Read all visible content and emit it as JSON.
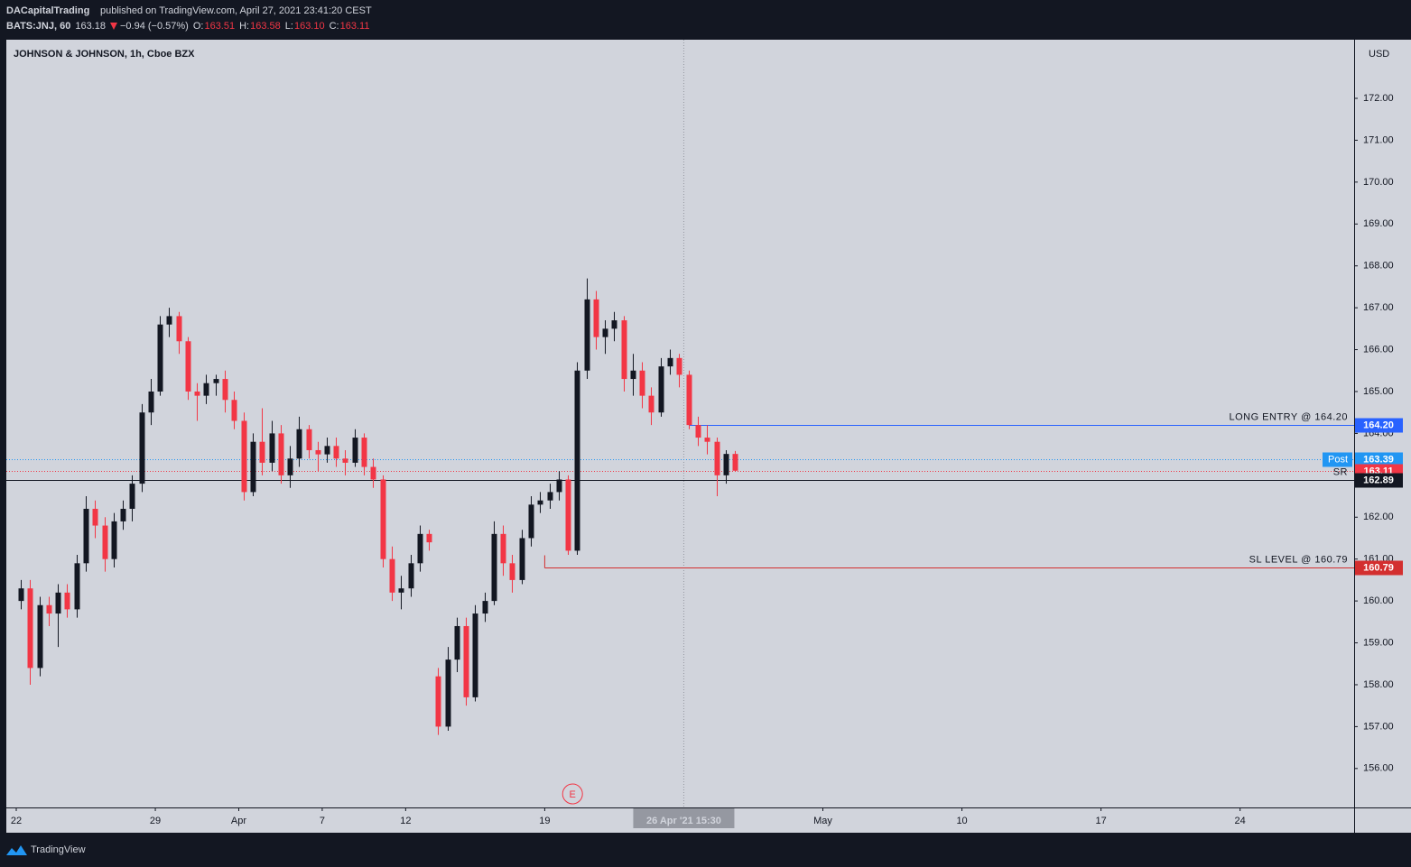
{
  "header": {
    "author": "DACapitalTrading",
    "published": "published on TradingView.com, April 27, 2021 23:41:20 CEST",
    "symbol": "BATS:JNJ, 60",
    "last": "163.18",
    "change": "−0.94 (−0.57%)",
    "o_label": "O:",
    "open": "163.51",
    "h_label": "H:",
    "high": "163.58",
    "l_label": "L:",
    "low": "163.10",
    "c_label": "C:",
    "close": "163.11"
  },
  "footer": {
    "brand": "TradingView"
  },
  "chart_data": {
    "type": "candlestick",
    "title": "JOHNSON & JOHNSON, 1h, Cboe BZX",
    "y_unit": "USD",
    "up_color": "#131722",
    "down_color": "#f23645",
    "grid": false,
    "x": [
      0.17,
      0.5,
      0.83,
      1.17,
      1.5,
      1.83,
      2.17,
      2.5,
      2.83,
      3.17,
      3.5,
      3.83,
      4.17,
      4.5,
      4.83,
      5.17,
      5.5,
      5.83,
      6.17,
      6.5,
      6.83,
      7.17,
      7.5,
      7.83,
      8.17,
      8.5,
      8.83,
      9.17,
      9.5,
      9.83,
      10.17,
      10.5,
      10.83,
      11.17,
      11.5,
      11.83,
      12.17,
      12.5,
      12.83,
      13.17,
      13.5,
      13.83,
      14.17,
      14.5,
      14.83,
      15.17,
      15.5,
      15.83,
      16.17,
      16.5,
      16.83,
      17.17,
      17.5,
      17.83,
      18.17,
      18.5,
      18.83,
      19.17,
      19.5,
      19.83,
      20.17,
      20.5,
      20.83,
      21.17,
      21.5,
      21.83,
      22.17,
      22.5,
      22.83,
      23.17,
      23.5,
      23.83,
      24.17,
      24.5,
      24.83,
      25.17,
      25.5,
      25.83
    ],
    "open": [
      160.0,
      160.3,
      158.4,
      159.9,
      159.7,
      160.2,
      159.8,
      160.9,
      162.2,
      161.8,
      161.0,
      161.9,
      162.2,
      162.8,
      164.5,
      165.0,
      166.6,
      166.8,
      166.2,
      165.0,
      164.9,
      165.2,
      165.3,
      164.8,
      164.3,
      162.6,
      163.8,
      163.3,
      164.0,
      163.0,
      163.4,
      164.1,
      163.6,
      163.5,
      163.7,
      163.4,
      163.3,
      163.9,
      163.2,
      162.9,
      161.0,
      160.2,
      160.3,
      160.9,
      161.6,
      158.2,
      157.0,
      158.6,
      159.4,
      157.7,
      159.7,
      160.0,
      161.6,
      160.9,
      160.5,
      161.5,
      162.3,
      162.4,
      162.6,
      162.9,
      161.2,
      165.5,
      167.2,
      166.3,
      166.5,
      166.7,
      165.3,
      165.5,
      164.9,
      164.5,
      165.6,
      165.8,
      165.4,
      164.2,
      163.9,
      163.8,
      163.0,
      163.51
    ],
    "high": [
      160.5,
      160.5,
      160.1,
      160.1,
      160.4,
      160.4,
      161.1,
      162.5,
      162.4,
      162.0,
      162.1,
      162.4,
      163.0,
      164.7,
      165.3,
      166.8,
      167.0,
      166.9,
      166.3,
      165.2,
      165.4,
      165.4,
      165.5,
      165.0,
      164.5,
      164.0,
      164.6,
      164.3,
      164.2,
      163.7,
      164.4,
      164.2,
      163.8,
      163.9,
      163.9,
      163.6,
      164.1,
      164.0,
      163.4,
      163.0,
      161.3,
      160.6,
      161.1,
      161.8,
      161.7,
      158.4,
      158.9,
      159.6,
      159.6,
      159.9,
      160.2,
      161.9,
      161.8,
      161.1,
      161.7,
      162.5,
      162.6,
      162.8,
      163.1,
      163.0,
      165.7,
      167.7,
      167.4,
      166.7,
      166.9,
      166.8,
      165.9,
      165.7,
      165.1,
      165.8,
      166.0,
      165.9,
      165.5,
      164.4,
      164.2,
      163.9,
      163.6,
      163.58
    ],
    "low": [
      159.8,
      158.0,
      158.2,
      159.4,
      158.9,
      159.6,
      159.6,
      160.7,
      161.5,
      160.7,
      160.8,
      161.7,
      161.9,
      162.6,
      164.2,
      164.9,
      166.3,
      165.9,
      164.8,
      164.3,
      164.7,
      164.9,
      164.5,
      164.1,
      162.4,
      162.5,
      163.0,
      163.1,
      162.8,
      162.7,
      163.2,
      163.4,
      163.1,
      163.3,
      163.2,
      163.0,
      163.2,
      163.0,
      162.7,
      160.8,
      160.0,
      159.8,
      160.1,
      160.7,
      161.2,
      156.8,
      156.9,
      158.3,
      157.5,
      157.6,
      159.5,
      159.9,
      160.6,
      160.2,
      160.4,
      161.3,
      162.1,
      162.2,
      162.4,
      161.1,
      161.1,
      165.3,
      166.0,
      165.9,
      166.2,
      165.0,
      164.9,
      164.6,
      164.2,
      164.4,
      165.4,
      165.1,
      164.1,
      163.7,
      163.5,
      162.5,
      162.8,
      163.1
    ],
    "close": [
      160.3,
      158.4,
      159.9,
      159.7,
      160.2,
      159.8,
      160.9,
      162.2,
      161.8,
      161.0,
      161.9,
      162.2,
      162.8,
      164.5,
      165.0,
      166.6,
      166.8,
      166.2,
      165.0,
      164.9,
      165.2,
      165.3,
      164.8,
      164.3,
      162.6,
      163.8,
      163.3,
      164.0,
      163.0,
      163.4,
      164.1,
      163.6,
      163.5,
      163.7,
      163.4,
      163.3,
      163.9,
      163.2,
      162.9,
      161.0,
      160.2,
      160.3,
      160.9,
      161.6,
      161.4,
      157.0,
      158.6,
      159.4,
      157.7,
      159.7,
      160.0,
      161.6,
      160.9,
      160.5,
      161.5,
      162.3,
      162.4,
      162.6,
      162.9,
      161.2,
      165.5,
      167.2,
      166.3,
      166.5,
      166.7,
      165.3,
      165.5,
      164.9,
      164.5,
      165.6,
      165.8,
      165.4,
      164.2,
      163.9,
      163.8,
      163.0,
      163.51,
      163.11
    ],
    "xlim": [
      -0.357,
      48.1
    ],
    "ylim": [
      155.07,
      173.4
    ],
    "xticks": [
      {
        "value": 0,
        "label": "22"
      },
      {
        "value": 5,
        "label": "29"
      },
      {
        "value": 8,
        "label": "Apr"
      },
      {
        "value": 11,
        "label": "7"
      },
      {
        "value": 14,
        "label": "12"
      },
      {
        "value": 19,
        "label": "19"
      },
      {
        "value": 29,
        "label": "May"
      },
      {
        "value": 34,
        "label": "10"
      },
      {
        "value": 39,
        "label": "17"
      },
      {
        "value": 44,
        "label": "24"
      }
    ],
    "yticks": [
      {
        "value": 156,
        "label": "156.00"
      },
      {
        "value": 157,
        "label": "157.00"
      },
      {
        "value": 158,
        "label": "158.00"
      },
      {
        "value": 159,
        "label": "159.00"
      },
      {
        "value": 160,
        "label": "160.00"
      },
      {
        "value": 161,
        "label": "161.00"
      },
      {
        "value": 162,
        "label": "162.00"
      },
      {
        "value": 163,
        "label": "163.00"
      },
      {
        "value": 164,
        "label": "164.00"
      },
      {
        "value": 165,
        "label": "165.00"
      },
      {
        "value": 166,
        "label": "166.00"
      },
      {
        "value": 167,
        "label": "167.00"
      },
      {
        "value": 168,
        "label": "168.00"
      },
      {
        "value": 169,
        "label": "169.00"
      },
      {
        "value": 170,
        "label": "170.00"
      },
      {
        "value": 171,
        "label": "171.00"
      },
      {
        "value": 172,
        "label": "172.00"
      }
    ],
    "levels": [
      {
        "label": "LONG ENTRY @ 164.20",
        "label_position": "line",
        "value": 164.2,
        "value_label": "164.20",
        "color": "#2962ff",
        "style": "solid",
        "x_start": 24.2
      },
      {
        "label": "Post",
        "label_position": "badge",
        "value": 163.39,
        "value_label": "163.39",
        "color": "#2196f3",
        "style": "dotted"
      },
      {
        "value": 163.11,
        "value_label": "163.11",
        "color": "#f23645",
        "style": "dotted"
      },
      {
        "label": "SR",
        "label_position": "line",
        "value": 162.89,
        "value_label": "162.89",
        "color": "#131722",
        "style": "solid"
      },
      {
        "label": "SL LEVEL @ 160.79",
        "label_position": "line",
        "value": 160.79,
        "value_label": "160.79",
        "color": "#d32f2f",
        "style": "solid",
        "x_start": 19.0
      }
    ],
    "crosshair": {
      "x": 24.0,
      "label": "26 Apr '21  15:30"
    },
    "events": [
      {
        "x": 20.0,
        "label": "E"
      }
    ]
  }
}
